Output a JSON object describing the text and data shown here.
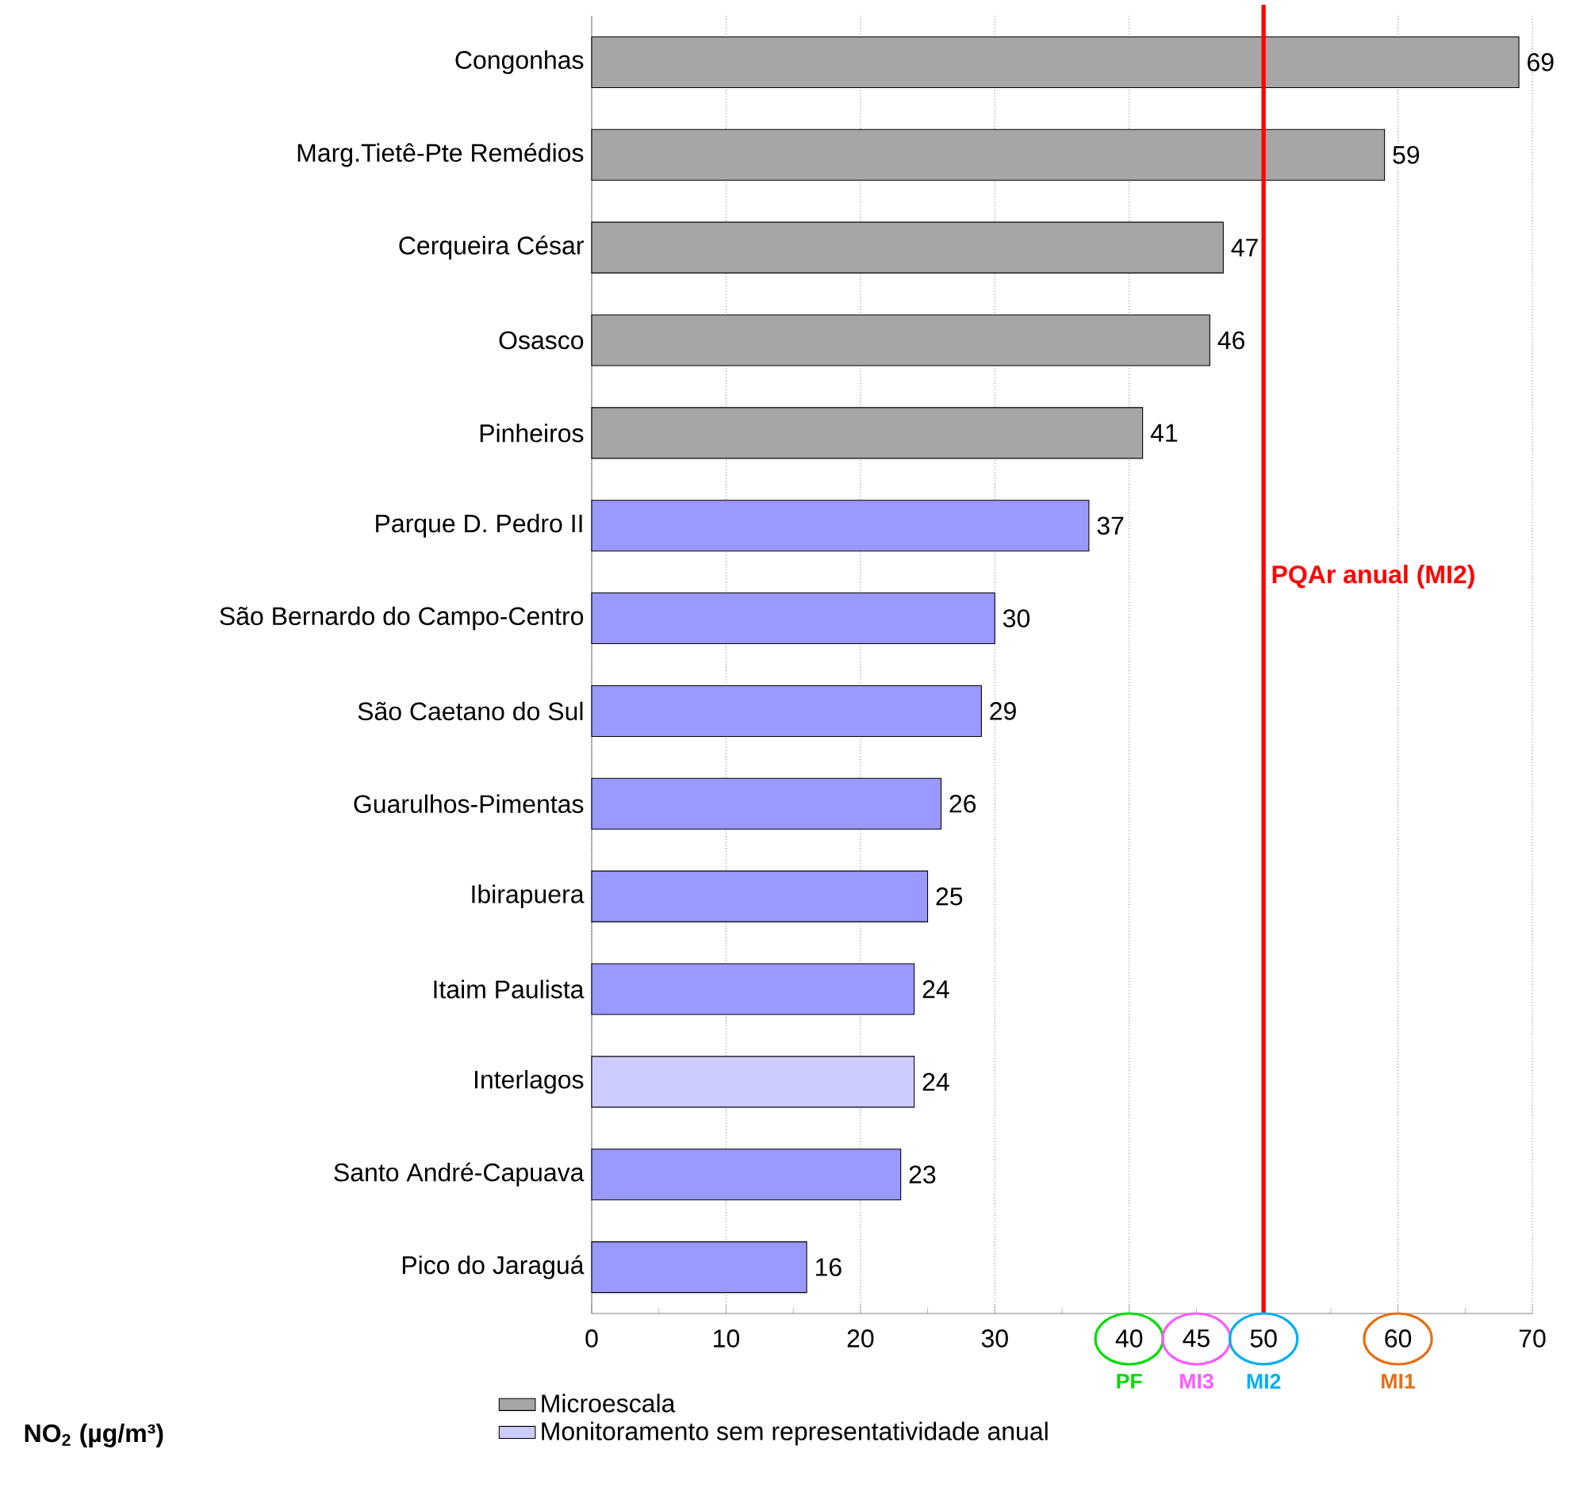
{
  "chart_data": {
    "type": "bar",
    "orientation": "horizontal",
    "categories": [
      "Congonhas",
      "Marg.Tietê-Pte Remédios",
      "Cerqueira César",
      "Osasco",
      "Pinheiros",
      "Parque D. Pedro II",
      "São Bernardo do Campo-Centro",
      "São Caetano do Sul",
      "Guarulhos-Pimentas",
      "Ibirapuera",
      "Itaim Paulista",
      "Interlagos",
      "Santo André-Capuava",
      "Pico do Jaraguá"
    ],
    "series": [
      {
        "name": "Microescala",
        "color": "#a6a6a6",
        "values": [
          69,
          59,
          47,
          46,
          41,
          null,
          null,
          null,
          null,
          null,
          null,
          null,
          null,
          null
        ]
      },
      {
        "color": "#9999ff",
        "values": [
          null,
          null,
          null,
          null,
          null,
          37,
          30,
          29,
          26,
          25,
          24,
          null,
          23,
          16
        ]
      },
      {
        "name": "Monitoramento sem representatividade anual",
        "color": "#ccccff",
        "values": [
          null,
          null,
          null,
          null,
          null,
          null,
          null,
          null,
          null,
          null,
          null,
          24,
          null,
          null
        ]
      }
    ],
    "xlim": [
      0,
      70
    ],
    "xticks": [
      0,
      10,
      20,
      30,
      40,
      {
        "value": 45,
        "label": "45"
      },
      50,
      60,
      70
    ],
    "xlabel": "NO$_{2}$ (µg/m³)",
    "grid": "x",
    "legend": "bottom",
    "data_labels": true,
    "ref_lines": [
      {
        "axis": "x",
        "value": 50,
        "label": "PQAr anual (MI2)",
        "color": "#ff0000"
      }
    ],
    "annotations": [
      "PF",
      "MI3",
      "MI2",
      "MI1"
    ]
  }
}
